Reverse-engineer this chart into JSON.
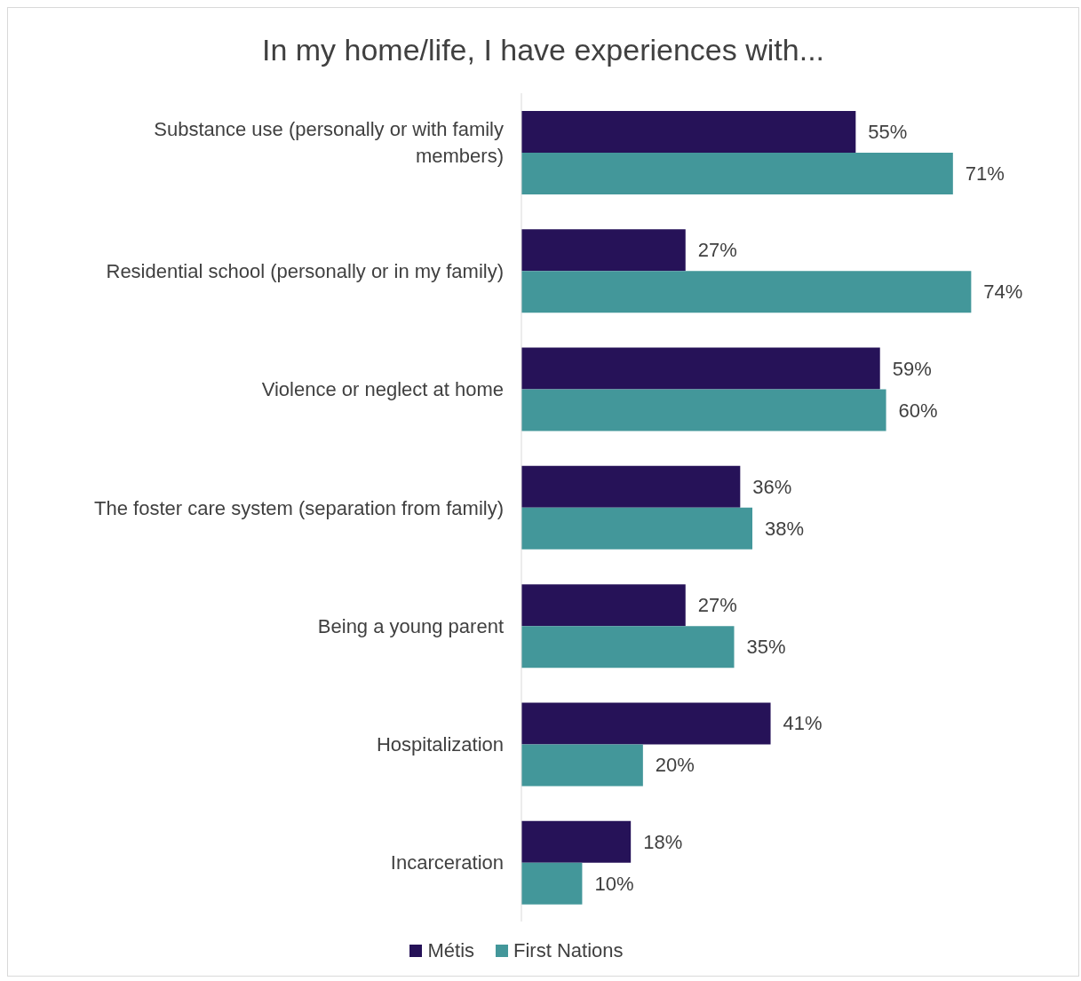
{
  "chart_data": {
    "type": "bar",
    "orientation": "horizontal",
    "title": "In my home/life, I have experiences with...",
    "categories": [
      "Substance use (personally or with family members)",
      "Residential school (personally or in my family)",
      "Violence or neglect at home",
      "The foster care system (separation from family)",
      "Being a young parent",
      "Hospitalization",
      "Incarceration"
    ],
    "series": [
      {
        "name": "Métis",
        "color": "#261258",
        "values": [
          55,
          27,
          59,
          36,
          27,
          41,
          18
        ],
        "value_labels": [
          "55%",
          "27%",
          "59%",
          "36%",
          "27%",
          "41%",
          "18%"
        ]
      },
      {
        "name": "First Nations",
        "color": "#43979a",
        "values": [
          71,
          74,
          60,
          38,
          35,
          20,
          10
        ],
        "value_labels": [
          "71%",
          "74%",
          "60%",
          "38%",
          "35%",
          "20%",
          "10%"
        ]
      }
    ],
    "legend": "bottom",
    "grid": false
  }
}
